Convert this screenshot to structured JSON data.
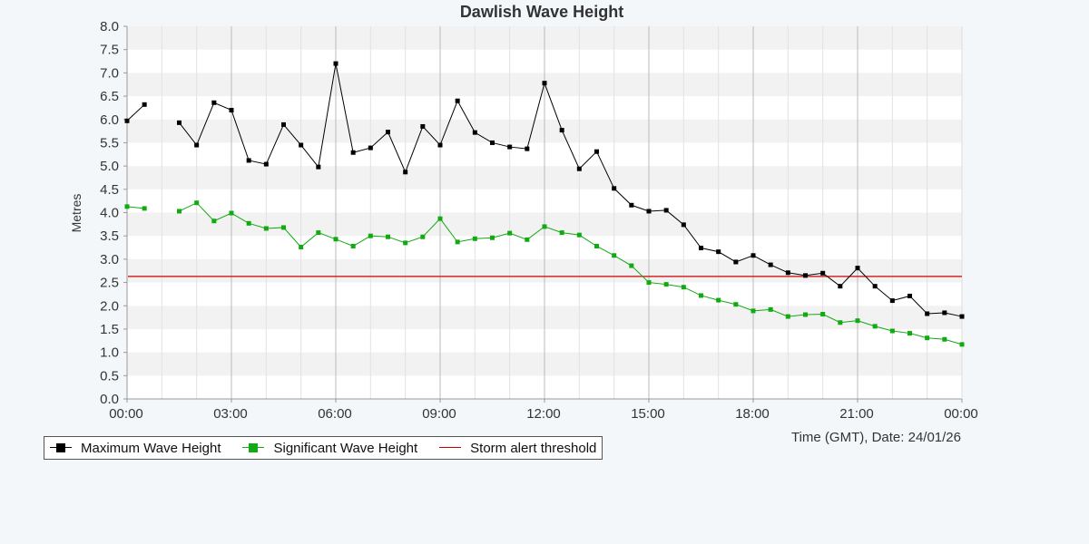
{
  "chart_data": {
    "type": "line",
    "title": "Dawlish Wave Height",
    "ylabel": "Metres",
    "xlabel": "Time (GMT), Date: 24/01/26",
    "ylim": [
      0,
      8
    ],
    "yticks": [
      "0.0",
      "0.5",
      "1.0",
      "1.5",
      "2.0",
      "2.5",
      "3.0",
      "3.5",
      "4.0",
      "4.5",
      "5.0",
      "5.5",
      "6.0",
      "6.5",
      "7.0",
      "7.5",
      "8.0"
    ],
    "xlim": [
      0,
      24
    ],
    "xticks": [
      "00:00",
      "03:00",
      "06:00",
      "09:00",
      "12:00",
      "15:00",
      "18:00",
      "21:00",
      "00:00"
    ],
    "grid": true,
    "legend_position": "bottom-left",
    "series": [
      {
        "name": "Maximum Wave Height",
        "color": "#000000",
        "points": [
          [
            0,
            5.97
          ],
          [
            0.5,
            6.32
          ],
          [
            1.5,
            5.93
          ],
          [
            2.0,
            5.45
          ],
          [
            2.5,
            6.36
          ],
          [
            3.0,
            6.2
          ],
          [
            3.5,
            5.12
          ],
          [
            4.0,
            5.04
          ],
          [
            4.5,
            5.89
          ],
          [
            5.0,
            5.45
          ],
          [
            5.5,
            4.98
          ],
          [
            6.0,
            7.2
          ],
          [
            6.5,
            5.29
          ],
          [
            7.0,
            5.39
          ],
          [
            7.5,
            5.73
          ],
          [
            8.0,
            4.87
          ],
          [
            8.5,
            5.85
          ],
          [
            9.0,
            5.45
          ],
          [
            9.5,
            6.4
          ],
          [
            10.0,
            5.72
          ],
          [
            10.5,
            5.5
          ],
          [
            11.0,
            5.41
          ],
          [
            11.5,
            5.37
          ],
          [
            12.0,
            6.78
          ],
          [
            12.5,
            5.77
          ],
          [
            13.0,
            4.94
          ],
          [
            13.5,
            5.31
          ],
          [
            14.0,
            4.52
          ],
          [
            14.5,
            4.16
          ],
          [
            15.0,
            4.03
          ],
          [
            15.5,
            4.05
          ],
          [
            16.0,
            3.74
          ],
          [
            16.5,
            3.24
          ],
          [
            17.0,
            3.16
          ],
          [
            17.5,
            2.94
          ],
          [
            18.0,
            3.08
          ],
          [
            18.5,
            2.88
          ],
          [
            19.0,
            2.71
          ],
          [
            19.5,
            2.65
          ],
          [
            20.0,
            2.7
          ],
          [
            20.5,
            2.42
          ],
          [
            21.0,
            2.81
          ],
          [
            21.5,
            2.42
          ],
          [
            22.0,
            2.11
          ],
          [
            22.5,
            2.21
          ],
          [
            23.0,
            1.83
          ],
          [
            23.5,
            1.85
          ],
          [
            24.0,
            1.77
          ]
        ]
      },
      {
        "name": "Significant Wave Height",
        "color": "#11aa11",
        "points": [
          [
            0,
            4.13
          ],
          [
            0.5,
            4.09
          ],
          [
            1.5,
            4.03
          ],
          [
            2.0,
            4.21
          ],
          [
            2.5,
            3.82
          ],
          [
            3.0,
            3.99
          ],
          [
            3.5,
            3.77
          ],
          [
            4.0,
            3.66
          ],
          [
            4.5,
            3.68
          ],
          [
            5.0,
            3.26
          ],
          [
            5.5,
            3.57
          ],
          [
            6.0,
            3.43
          ],
          [
            6.5,
            3.28
          ],
          [
            7.0,
            3.5
          ],
          [
            7.5,
            3.48
          ],
          [
            8.0,
            3.35
          ],
          [
            8.5,
            3.48
          ],
          [
            9.0,
            3.87
          ],
          [
            9.5,
            3.37
          ],
          [
            10.0,
            3.44
          ],
          [
            10.5,
            3.46
          ],
          [
            11.0,
            3.56
          ],
          [
            11.5,
            3.42
          ],
          [
            12.0,
            3.7
          ],
          [
            12.5,
            3.57
          ],
          [
            13.0,
            3.52
          ],
          [
            13.5,
            3.28
          ],
          [
            14.0,
            3.08
          ],
          [
            14.5,
            2.86
          ],
          [
            15.0,
            2.5
          ],
          [
            15.5,
            2.46
          ],
          [
            16.0,
            2.4
          ],
          [
            16.5,
            2.22
          ],
          [
            17.0,
            2.12
          ],
          [
            17.5,
            2.03
          ],
          [
            18.0,
            1.89
          ],
          [
            18.5,
            1.92
          ],
          [
            19.0,
            1.77
          ],
          [
            19.5,
            1.81
          ],
          [
            20.0,
            1.82
          ],
          [
            20.5,
            1.64
          ],
          [
            21.0,
            1.68
          ],
          [
            21.5,
            1.56
          ],
          [
            22.0,
            1.46
          ],
          [
            22.5,
            1.41
          ],
          [
            23.0,
            1.31
          ],
          [
            23.5,
            1.28
          ],
          [
            24.0,
            1.17
          ]
        ]
      },
      {
        "name": "Storm alert threshold",
        "color": "#cc0000",
        "threshold": 2.63
      }
    ]
  },
  "colors": {
    "background": "#f4f7fa",
    "plot_band_light": "#ffffff",
    "plot_band_dark": "#f2f2f2",
    "axis": "#999999",
    "vertical_grid_major": "#bbbbbb",
    "vertical_grid_minor": "#e2e2e2"
  }
}
